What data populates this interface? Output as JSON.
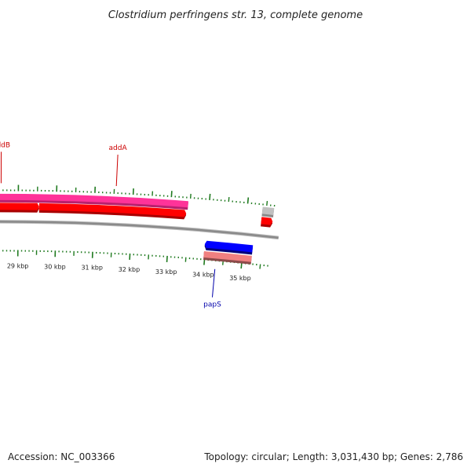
{
  "title": "Clostridium perfringens str. 13, complete genome",
  "footer": {
    "accession": "Accession: NC_003366",
    "summary": "Topology: circular; Length: 3,031,430 bp; Genes: 2,786"
  },
  "colors": {
    "backbone": "#8a8a8a",
    "tick": "#1f7a1f",
    "forward_cds": "#ff0000",
    "reverse_cds": "#0000ff",
    "highlight_forward": "#ff3399",
    "highlight_reverse": "#f08080",
    "other_feature": "#c0c0c0",
    "label_forward": "#cc0000",
    "label_reverse": "#0000aa"
  },
  "chart_data": {
    "type": "genome_map",
    "view_range_kbp": [
      28.4,
      35.7
    ],
    "ticks_kbp": [
      "29",
      "30",
      "31",
      "32",
      "33",
      "34",
      "35"
    ],
    "tick_labels": [
      "29 kbp",
      "30 kbp",
      "31 kbp",
      "32 kbp",
      "33 kbp",
      "34 kbp",
      "35 kbp"
    ],
    "features": [
      {
        "name": "forward-cds-1",
        "start_kbp": 28.4,
        "end_kbp": 29.55,
        "strand": "forward",
        "ring": "forward",
        "color": "forward_cds"
      },
      {
        "name": "forward-cds-2",
        "start_kbp": 29.55,
        "end_kbp": 33.42,
        "strand": "forward",
        "ring": "forward",
        "color": "forward_cds"
      },
      {
        "name": "highlight-addAB",
        "start_kbp": 28.4,
        "end_kbp": 33.45,
        "strand": "none",
        "ring": "highlight_forward",
        "color": "highlight_forward"
      },
      {
        "name": "reverse-cds-papS",
        "start_kbp": 33.97,
        "end_kbp": 35.25,
        "strand": "reverse",
        "ring": "reverse",
        "color": "reverse_cds"
      },
      {
        "name": "highlight-papS",
        "start_kbp": 33.97,
        "end_kbp": 35.25,
        "strand": "none",
        "ring": "highlight_reverse",
        "color": "highlight_reverse"
      },
      {
        "name": "forward-cds-3",
        "start_kbp": 35.4,
        "end_kbp": 35.7,
        "strand": "forward",
        "ring": "forward",
        "color": "forward_cds"
      },
      {
        "name": "other-feature-1",
        "start_kbp": 35.4,
        "end_kbp": 35.7,
        "strand": "none",
        "ring": "other",
        "color": "other_feature"
      }
    ],
    "gene_labels": [
      {
        "name": "addB",
        "text": "addB",
        "position_kbp": 28.55,
        "side": "outer",
        "color": "label_forward"
      },
      {
        "name": "addA",
        "text": "addA",
        "position_kbp": 31.55,
        "side": "outer",
        "color": "label_forward"
      },
      {
        "name": "papS",
        "text": "papS",
        "position_kbp": 34.3,
        "side": "inner",
        "color": "label_reverse"
      }
    ]
  }
}
